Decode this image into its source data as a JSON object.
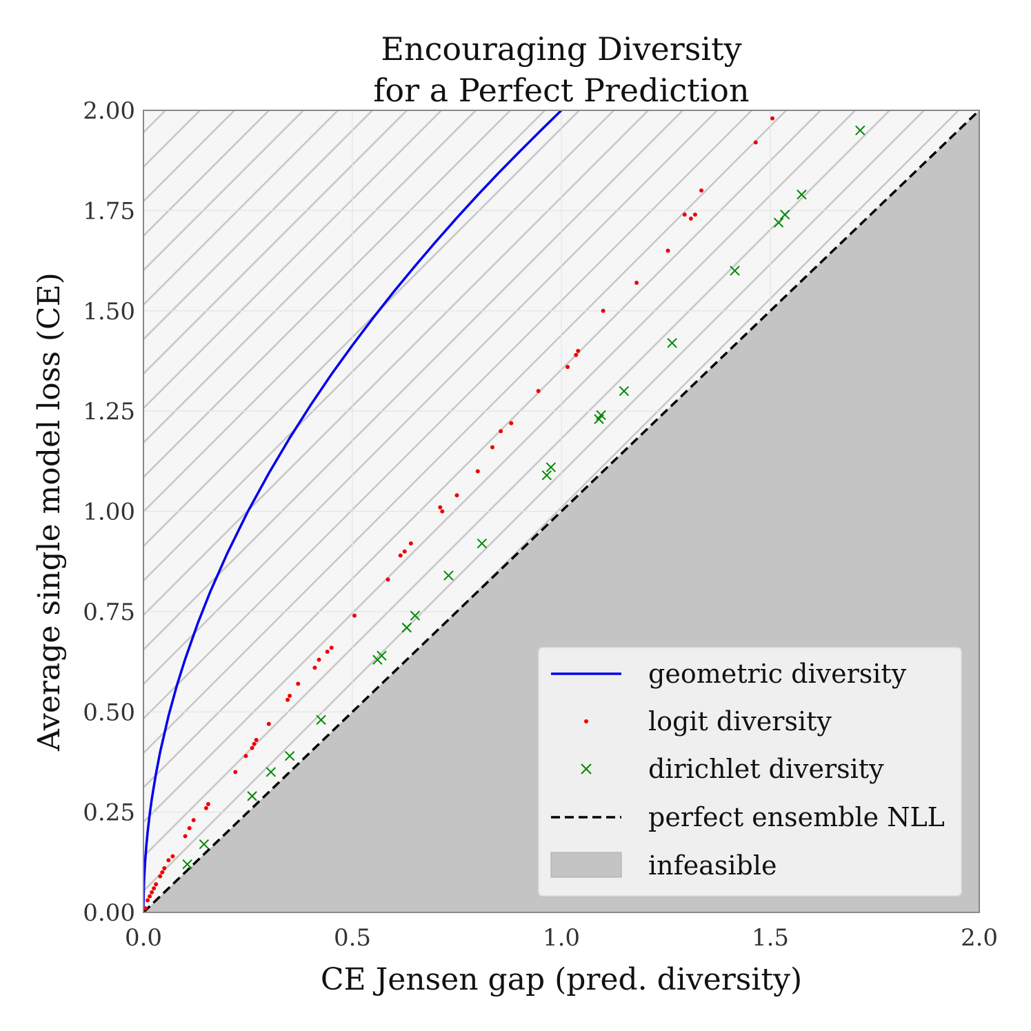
{
  "chart_data": {
    "type": "scatter",
    "title": [
      "Encouraging Diversity",
      "for a Perfect Prediction"
    ],
    "xlabel": "CE Jensen gap (pred. diversity)",
    "ylabel": "Average single model loss (CE)",
    "xlim": [
      0,
      2
    ],
    "ylim": [
      0,
      2
    ],
    "x_ticks": [
      "0.0",
      "0.5",
      "1.0",
      "1.5",
      "2.0"
    ],
    "x_tick_values": [
      0,
      0.5,
      1.0,
      1.5,
      2.0
    ],
    "y_ticks": [
      "0.00",
      "0.25",
      "0.50",
      "0.75",
      "1.00",
      "1.25",
      "1.50",
      "1.75",
      "2.00"
    ],
    "y_tick_values": [
      0,
      0.25,
      0.5,
      0.75,
      1.0,
      1.25,
      1.5,
      1.75,
      2.0
    ],
    "grid": true,
    "legend_position": "bottom-right",
    "series": [
      {
        "name": "geometric diversity",
        "kind": "line",
        "color": "#0000ee",
        "x": [
          0,
          0.0005,
          0.001,
          0.002,
          0.004,
          0.007,
          0.01,
          0.015,
          0.02,
          0.03,
          0.04,
          0.06,
          0.08,
          0.1,
          0.13,
          0.16,
          0.2,
          0.25,
          0.3,
          0.35,
          0.4,
          0.45,
          0.5,
          0.55,
          0.6,
          0.65,
          0.7,
          0.75,
          0.8,
          0.85,
          0.9,
          0.95,
          1.0
        ],
        "y": [
          0,
          0.045,
          0.063,
          0.089,
          0.126,
          0.167,
          0.2,
          0.245,
          0.283,
          0.346,
          0.4,
          0.49,
          0.566,
          0.632,
          0.721,
          0.8,
          0.894,
          1.0,
          1.095,
          1.183,
          1.265,
          1.342,
          1.414,
          1.483,
          1.549,
          1.612,
          1.673,
          1.732,
          1.789,
          1.844,
          1.897,
          1.949,
          2.0
        ]
      },
      {
        "name": "logit diversity",
        "kind": "scatter",
        "marker": "dot",
        "color": "#ee0000",
        "x": [
          0.005,
          0.01,
          0.015,
          0.02,
          0.025,
          0.03,
          0.04,
          0.045,
          0.05,
          0.06,
          0.07,
          0.1,
          0.11,
          0.12,
          0.15,
          0.155,
          0.22,
          0.245,
          0.26,
          0.265,
          0.27,
          0.3,
          0.345,
          0.35,
          0.37,
          0.41,
          0.42,
          0.44,
          0.45,
          0.505,
          0.585,
          0.615,
          0.625,
          0.64,
          0.71,
          0.715,
          0.75,
          0.8,
          0.835,
          0.855,
          0.88,
          0.945,
          1.015,
          1.035,
          1.04,
          1.1,
          1.18,
          1.255,
          1.295,
          1.31,
          1.32,
          1.335,
          1.465,
          1.505
        ],
        "y": [
          0.01,
          0.03,
          0.04,
          0.05,
          0.06,
          0.07,
          0.09,
          0.1,
          0.11,
          0.13,
          0.14,
          0.19,
          0.21,
          0.23,
          0.26,
          0.27,
          0.35,
          0.39,
          0.41,
          0.42,
          0.43,
          0.47,
          0.53,
          0.54,
          0.57,
          0.61,
          0.63,
          0.65,
          0.66,
          0.74,
          0.83,
          0.89,
          0.9,
          0.92,
          1.01,
          1.0,
          1.04,
          1.1,
          1.16,
          1.2,
          1.22,
          1.3,
          1.36,
          1.39,
          1.4,
          1.5,
          1.57,
          1.65,
          1.74,
          1.73,
          1.74,
          1.8,
          1.92,
          1.98
        ]
      },
      {
        "name": "dirichlet diversity",
        "kind": "scatter",
        "marker": "x",
        "color": "#008800",
        "x": [
          0.105,
          0.145,
          0.26,
          0.305,
          0.35,
          0.425,
          0.56,
          0.57,
          0.63,
          0.65,
          0.73,
          0.81,
          0.965,
          0.975,
          1.09,
          1.095,
          1.15,
          1.265,
          1.415,
          1.52,
          1.535,
          1.575,
          1.715
        ],
        "y": [
          0.12,
          0.17,
          0.29,
          0.35,
          0.39,
          0.48,
          0.63,
          0.64,
          0.71,
          0.74,
          0.84,
          0.92,
          1.09,
          1.11,
          1.23,
          1.24,
          1.3,
          1.42,
          1.6,
          1.72,
          1.74,
          1.79,
          1.95
        ]
      },
      {
        "name": "perfect ensemble NLL",
        "kind": "dashed-line",
        "color": "#000000",
        "x": [
          0,
          2
        ],
        "y": [
          0,
          2
        ]
      },
      {
        "name": "infeasible",
        "kind": "region",
        "color": "#c4c4c4",
        "description_points_x": [
          0,
          2,
          2
        ],
        "description_points_y": [
          0,
          2,
          0
        ]
      }
    ],
    "legend": [
      "geometric diversity",
      "logit diversity",
      "dirichlet diversity",
      "perfect ensemble NLL",
      "infeasible"
    ]
  }
}
